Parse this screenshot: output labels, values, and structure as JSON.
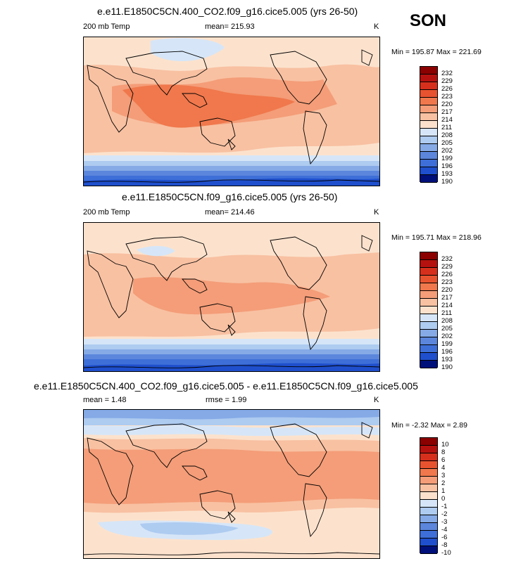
{
  "season": "SON",
  "colors": {
    "abs_scale": [
      "#8b0000",
      "#b5120f",
      "#d6301d",
      "#e8532f",
      "#f0784c",
      "#f49d78",
      "#f8c1a2",
      "#fce2cd",
      "#ffffff",
      "#d6e6f8",
      "#aecbf0",
      "#85aae6",
      "#5b86dc",
      "#3e6fd8",
      "#1f4fcc",
      "#0e30ac",
      "#00107a"
    ],
    "diff_scale": [
      "#8b0000",
      "#b5120f",
      "#d6301d",
      "#e8532f",
      "#f0784c",
      "#f49d78",
      "#f8c1a2",
      "#fce2cd",
      "#ffffff",
      "#d6e6f8",
      "#aecbf0",
      "#85aae6",
      "#5b86dc",
      "#3e6fd8",
      "#1f4fcc",
      "#0e30ac",
      "#00107a"
    ]
  },
  "panels": [
    {
      "title": "e.e11.E1850C5CN.400_CO2.f09_g16.cice5.005 (yrs 26-50)",
      "left_label": "200 mb Temp",
      "mean_label": "mean= 215.93",
      "units": "K",
      "minmax": "Min = 195.87 Max = 221.69",
      "ticks": [
        "232",
        "229",
        "226",
        "223",
        "220",
        "217",
        "214",
        "211",
        "208",
        "205",
        "202",
        "199",
        "196",
        "193",
        "190"
      ]
    },
    {
      "title": "e.e11.E1850C5CN.f09_g16.cice5.005 (yrs 26-50)",
      "left_label": "200 mb Temp",
      "mean_label": "mean= 214.46",
      "units": "K",
      "minmax": "Min = 195.71 Max = 218.96",
      "ticks": [
        "232",
        "229",
        "226",
        "223",
        "220",
        "217",
        "214",
        "211",
        "208",
        "205",
        "202",
        "199",
        "196",
        "193",
        "190"
      ]
    },
    {
      "title": "e.e11.E1850C5CN.400_CO2.f09_g16.cice5.005 - e.e11.E1850C5CN.f09_g16.cice5.005",
      "left_label": "mean =   1.48",
      "mean_label": "rmse =   1.99",
      "units": "K",
      "minmax": "Min =  -2.32 Max =   2.89",
      "ticks": [
        "10",
        "8",
        "6",
        "4",
        "3",
        "2",
        "1",
        "0",
        "-1",
        "-2",
        "-3",
        "-4",
        "-6",
        "-8",
        "-10"
      ]
    }
  ]
}
